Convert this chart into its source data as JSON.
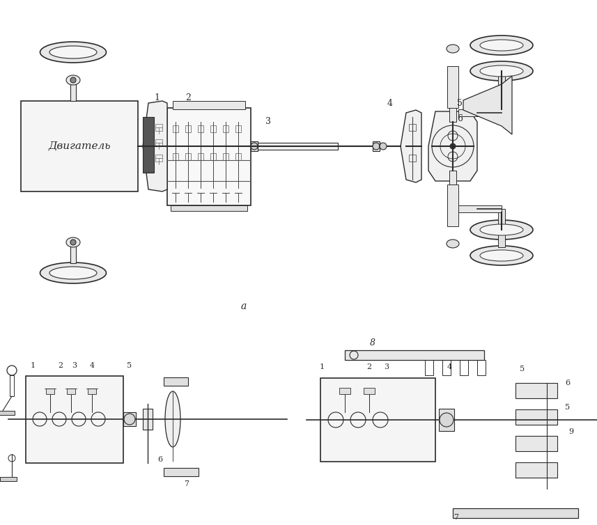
{
  "bg_color": "#ffffff",
  "line_color": "#2a2a2a",
  "figsize": [
    8.57,
    7.54
  ],
  "dpi": 100,
  "label_dvigatel": "Двигатель",
  "label_a": "а"
}
